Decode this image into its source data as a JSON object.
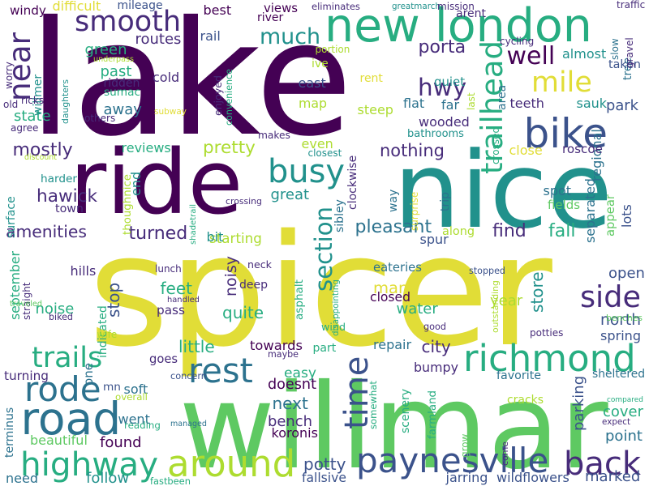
{
  "palette": {
    "purple": "#440154",
    "indigo": "#472c7a",
    "blue": "#3b528b",
    "steel": "#2c728e",
    "teal": "#21918c",
    "sea": "#27ad81",
    "green": "#5ec962",
    "lime": "#addc30",
    "yellow": "#e1dd37",
    "background": "#ffffff"
  },
  "words": [
    {
      "text": "lake",
      "color": "purple",
      "rotated": false
    },
    {
      "text": "spicer",
      "color": "yellow",
      "rotated": false
    },
    {
      "text": "willmar",
      "color": "green",
      "rotated": false
    },
    {
      "text": "nice",
      "color": "teal",
      "rotated": false
    },
    {
      "text": "ride",
      "color": "purple",
      "rotated": false
    },
    {
      "text": "new london",
      "color": "sea",
      "rotated": false
    },
    {
      "text": "richmond",
      "color": "sea",
      "rotated": false
    },
    {
      "text": "mile",
      "color": "yellow",
      "rotated": false
    },
    {
      "text": "bike",
      "color": "blue",
      "rotated": false
    },
    {
      "text": "paynesville",
      "color": "blue",
      "rotated": false
    },
    {
      "text": "road",
      "color": "steel",
      "rotated": false
    },
    {
      "text": "around",
      "color": "lime",
      "rotated": false
    },
    {
      "text": "busy",
      "color": "teal",
      "rotated": false
    },
    {
      "text": "trailhead",
      "color": "sea",
      "rotated": true
    },
    {
      "text": "time",
      "color": "blue",
      "rotated": true
    },
    {
      "text": "highway",
      "color": "sea",
      "rotated": false
    },
    {
      "text": "back",
      "color": "indigo",
      "rotated": false
    },
    {
      "text": "side",
      "color": "indigo",
      "rotated": false
    },
    {
      "text": "smooth",
      "color": "indigo",
      "rotated": false
    },
    {
      "text": "rest",
      "color": "steel",
      "rotated": false
    },
    {
      "text": "rode",
      "color": "steel",
      "rotated": false
    },
    {
      "text": "trails",
      "color": "sea",
      "rotated": false
    },
    {
      "text": "much",
      "color": "teal",
      "rotated": false
    },
    {
      "text": "near",
      "color": "indigo",
      "rotated": true
    },
    {
      "text": "many",
      "color": "yellow",
      "rotated": false
    },
    {
      "text": "section",
      "color": "teal",
      "rotated": true
    },
    {
      "text": "hwy",
      "color": "indigo",
      "rotated": false
    },
    {
      "text": "well",
      "color": "purple",
      "rotated": false
    },
    {
      "text": "porta",
      "color": "indigo",
      "rotated": false
    },
    {
      "text": "pretty",
      "color": "lime",
      "rotated": false
    },
    {
      "text": "mostly",
      "color": "indigo",
      "rotated": false
    },
    {
      "text": "hawick",
      "color": "indigo",
      "rotated": false
    },
    {
      "text": "amenities",
      "color": "indigo",
      "rotated": false
    },
    {
      "text": "turned",
      "color": "indigo",
      "rotated": false
    },
    {
      "text": "pleasant",
      "color": "steel",
      "rotated": false
    },
    {
      "text": "find",
      "color": "indigo",
      "rotated": false
    },
    {
      "text": "fall",
      "color": "sea",
      "rotated": false
    },
    {
      "text": "nothing",
      "color": "indigo",
      "rotated": false
    },
    {
      "text": "park",
      "color": "blue",
      "rotated": false
    },
    {
      "text": "north",
      "color": "blue",
      "rotated": false
    },
    {
      "text": "store",
      "color": "teal",
      "rotated": true
    },
    {
      "text": "spring",
      "color": "blue",
      "rotated": false
    },
    {
      "text": "open",
      "color": "blue",
      "rotated": false
    },
    {
      "text": "potty",
      "color": "blue",
      "rotated": false
    },
    {
      "text": "found",
      "color": "purple",
      "rotated": false
    },
    {
      "text": "follow",
      "color": "teal",
      "rotated": false
    },
    {
      "text": "marked",
      "color": "blue",
      "rotated": false
    },
    {
      "text": "next",
      "color": "steel",
      "rotated": false
    },
    {
      "text": "easy",
      "color": "sea",
      "rotated": false
    },
    {
      "text": "city",
      "color": "indigo",
      "rotated": false
    },
    {
      "text": "little",
      "color": "sea",
      "rotated": false
    },
    {
      "text": "stop",
      "color": "blue",
      "rotated": true
    },
    {
      "text": "feet",
      "color": "sea",
      "rotated": false
    },
    {
      "text": "noisy",
      "color": "indigo",
      "rotated": true
    },
    {
      "text": "quite",
      "color": "sea",
      "rotated": false
    },
    {
      "text": "water",
      "color": "sea",
      "rotated": false
    },
    {
      "text": "year",
      "color": "lime",
      "rotated": false
    },
    {
      "text": "eateries",
      "color": "steel",
      "rotated": false
    },
    {
      "text": "noise",
      "color": "sea",
      "rotated": false
    },
    {
      "text": "september",
      "color": "sea",
      "rotated": true
    },
    {
      "text": "towards",
      "color": "purple",
      "rotated": false
    },
    {
      "text": "bench",
      "color": "indigo",
      "rotated": false
    },
    {
      "text": "koronis",
      "color": "purple",
      "rotated": false
    },
    {
      "text": "doesnt",
      "color": "purple",
      "rotated": false
    },
    {
      "text": "somewhat",
      "color": "sea",
      "rotated": true
    },
    {
      "text": "scenery",
      "color": "sea",
      "rotated": true
    },
    {
      "text": "bumpy",
      "color": "indigo",
      "rotated": false
    },
    {
      "text": "repair",
      "color": "steel",
      "rotated": false
    },
    {
      "text": "parking",
      "color": "blue",
      "rotated": true
    },
    {
      "text": "cover",
      "color": "sea",
      "rotated": false
    },
    {
      "text": "point",
      "color": "steel",
      "rotated": false
    },
    {
      "text": "went",
      "color": "steel",
      "rotated": false
    },
    {
      "text": "soft",
      "color": "steel",
      "rotated": false
    },
    {
      "text": "mn",
      "color": "blue",
      "rotated": false
    },
    {
      "text": "goes",
      "color": "indigo",
      "rotated": false
    },
    {
      "text": "one",
      "color": "steel",
      "rotated": true
    },
    {
      "text": "turning",
      "color": "indigo",
      "rotated": false
    },
    {
      "text": "beautiful",
      "color": "green",
      "rotated": false
    },
    {
      "text": "need",
      "color": "steel",
      "rotated": false
    },
    {
      "text": "terminus",
      "color": "steel",
      "rotated": true
    },
    {
      "text": "fallsive",
      "color": "blue",
      "rotated": false
    },
    {
      "text": "jarring",
      "color": "blue",
      "rotated": false
    },
    {
      "text": "wildflowers",
      "color": "blue",
      "rotated": false
    },
    {
      "text": "farmland",
      "color": "sea",
      "rotated": true
    },
    {
      "text": "sheltered",
      "color": "steel",
      "rotated": false
    },
    {
      "text": "favorite",
      "color": "steel",
      "rotated": false
    },
    {
      "text": "cracks",
      "color": "lime",
      "rotated": false
    },
    {
      "text": "closed",
      "color": "purple",
      "rotated": false
    },
    {
      "text": "asphalt",
      "color": "sea",
      "rotated": true
    },
    {
      "text": "wind",
      "color": "sea",
      "rotated": false
    },
    {
      "text": "spur",
      "color": "blue",
      "rotated": false
    },
    {
      "text": "along",
      "color": "lime",
      "rotated": false
    },
    {
      "text": "lots",
      "color": "blue",
      "rotated": true
    },
    {
      "text": "appear",
      "color": "green",
      "rotated": true
    },
    {
      "text": "separated",
      "color": "steel",
      "rotated": true
    },
    {
      "text": "regional",
      "color": "steel",
      "rotated": true
    },
    {
      "text": "spot",
      "color": "steel",
      "rotated": false
    },
    {
      "text": "fields",
      "color": "green",
      "rotated": false
    },
    {
      "text": "trip",
      "color": "steel",
      "rotated": true
    },
    {
      "text": "way",
      "color": "steel",
      "rotated": true
    },
    {
      "text": "sibley",
      "color": "steel",
      "rotated": true
    },
    {
      "text": "great",
      "color": "teal",
      "rotated": false
    },
    {
      "text": "starting",
      "color": "lime",
      "rotated": false
    },
    {
      "text": "bit",
      "color": "teal",
      "rotated": false
    },
    {
      "text": "even",
      "color": "lime",
      "rotated": false
    },
    {
      "text": "close",
      "color": "yellow",
      "rotated": false
    },
    {
      "text": "roscoe",
      "color": "indigo",
      "rotated": false
    },
    {
      "text": "wooded",
      "color": "indigo",
      "rotated": false
    },
    {
      "text": "flat",
      "color": "steel",
      "rotated": false
    },
    {
      "text": "far",
      "color": "steel",
      "rotated": false
    },
    {
      "text": "steep",
      "color": "lime",
      "rotated": false
    },
    {
      "text": "teeth",
      "color": "indigo",
      "rotated": false
    },
    {
      "text": "sauk",
      "color": "teal",
      "rotated": false
    },
    {
      "text": "east",
      "color": "blue",
      "rotated": false
    },
    {
      "text": "map",
      "color": "lime",
      "rotated": false
    },
    {
      "text": "quiet",
      "color": "teal",
      "rotated": false
    },
    {
      "text": "almost",
      "color": "teal",
      "rotated": false
    },
    {
      "text": "tree",
      "color": "steel",
      "rotated": true
    },
    {
      "text": "taken",
      "color": "blue",
      "rotated": false
    },
    {
      "text": "area",
      "color": "steel",
      "rotated": true
    },
    {
      "text": "rent",
      "color": "yellow",
      "rotated": false
    },
    {
      "text": "ive",
      "color": "lime",
      "rotated": false
    },
    {
      "text": "rail",
      "color": "blue",
      "rotated": false
    },
    {
      "text": "best",
      "color": "purple",
      "rotated": false
    },
    {
      "text": "views",
      "color": "purple",
      "rotated": false
    },
    {
      "text": "river",
      "color": "purple",
      "rotated": false
    },
    {
      "text": "enjoyed",
      "color": "indigo",
      "rotated": true
    },
    {
      "text": "convenience",
      "color": "sea",
      "rotated": true
    },
    {
      "text": "routes",
      "color": "indigo",
      "rotated": false
    },
    {
      "text": "cold",
      "color": "indigo",
      "rotated": false
    },
    {
      "text": "green",
      "color": "sea",
      "rotated": false
    },
    {
      "text": "past",
      "color": "sea",
      "rotated": false
    },
    {
      "text": "sumac",
      "color": "sea",
      "rotated": false
    },
    {
      "text": "ridden",
      "color": "indigo",
      "rotated": false
    },
    {
      "text": "away",
      "color": "steel",
      "rotated": false
    },
    {
      "text": "state",
      "color": "sea",
      "rotated": false
    },
    {
      "text": "daughters",
      "color": "teal",
      "rotated": true
    },
    {
      "text": "willmer",
      "color": "teal",
      "rotated": true
    },
    {
      "text": "surface",
      "color": "teal",
      "rotated": true
    },
    {
      "text": "town",
      "color": "indigo",
      "rotated": false
    },
    {
      "text": "end",
      "color": "teal",
      "rotated": true
    },
    {
      "text": "reviews",
      "color": "sea",
      "rotated": false
    },
    {
      "text": "makes",
      "color": "indigo",
      "rotated": false
    },
    {
      "text": "thoughnice",
      "color": "lime",
      "rotated": true
    },
    {
      "text": "shadetrail",
      "color": "sea",
      "rotated": true
    },
    {
      "text": "crossing",
      "color": "indigo",
      "rotated": false
    },
    {
      "text": "hills",
      "color": "indigo",
      "rotated": false
    },
    {
      "text": "straight",
      "color": "indigo",
      "rotated": true
    },
    {
      "text": "neck",
      "color": "indigo",
      "rotated": false
    },
    {
      "text": "deep",
      "color": "indigo",
      "rotated": false
    },
    {
      "text": "lunch",
      "color": "indigo",
      "rotated": false
    },
    {
      "text": "handled",
      "color": "indigo",
      "rotated": false
    },
    {
      "text": "pass",
      "color": "indigo",
      "rotated": false
    },
    {
      "text": "indicated",
      "color": "sea",
      "rotated": true
    },
    {
      "text": "maybe",
      "color": "indigo",
      "rotated": false
    },
    {
      "text": "part",
      "color": "sea",
      "rotated": false
    },
    {
      "text": "disappointing",
      "color": "sea",
      "rotated": true
    },
    {
      "text": "stopped",
      "color": "blue",
      "rotated": false
    },
    {
      "text": "outstanding",
      "color": "lime",
      "rotated": true
    },
    {
      "text": "good",
      "color": "indigo",
      "rotated": false
    },
    {
      "text": "potties",
      "color": "indigo",
      "rotated": false
    },
    {
      "text": "benches",
      "color": "green",
      "rotated": false
    },
    {
      "text": "concern",
      "color": "blue",
      "rotated": false
    },
    {
      "text": "managed",
      "color": "steel",
      "rotated": false
    },
    {
      "text": "reading",
      "color": "sea",
      "rotated": false
    },
    {
      "text": "overall",
      "color": "lime",
      "rotated": false
    },
    {
      "text": "compared",
      "color": "sea",
      "rotated": false
    },
    {
      "text": "expect",
      "color": "indigo",
      "rotated": false
    },
    {
      "text": "grow",
      "color": "green",
      "rotated": true
    },
    {
      "text": "come",
      "color": "indigo",
      "rotated": true
    },
    {
      "text": "fastbeen",
      "color": "sea",
      "rotated": false
    },
    {
      "text": "wife",
      "color": "lime",
      "rotated": false
    },
    {
      "text": "biked",
      "color": "indigo",
      "rotated": false
    },
    {
      "text": "traveled",
      "color": "green",
      "rotated": false
    },
    {
      "text": "harder",
      "color": "teal",
      "rotated": false
    },
    {
      "text": "clockwise",
      "color": "indigo",
      "rotated": true
    },
    {
      "text": "surprise",
      "color": "yellow",
      "rotated": true
    },
    {
      "text": "crossed",
      "color": "sea",
      "rotated": true
    },
    {
      "text": "bathrooms",
      "color": "teal",
      "rotated": false
    },
    {
      "text": "closest",
      "color": "teal",
      "rotated": false
    },
    {
      "text": "discount",
      "color": "lime",
      "rotated": false
    },
    {
      "text": "agree",
      "color": "indigo",
      "rotated": false
    },
    {
      "text": "others",
      "color": "indigo",
      "rotated": false
    },
    {
      "text": "subway",
      "color": "yellow",
      "rotated": false
    },
    {
      "text": "underpass",
      "color": "lime",
      "rotated": false
    },
    {
      "text": "ricks",
      "color": "indigo",
      "rotated": false
    },
    {
      "text": "old",
      "color": "indigo",
      "rotated": false
    },
    {
      "text": "worry",
      "color": "indigo",
      "rotated": true
    },
    {
      "text": "windy",
      "color": "purple",
      "rotated": false
    },
    {
      "text": "difficult",
      "color": "yellow",
      "rotated": false
    },
    {
      "text": "mileage",
      "color": "blue",
      "rotated": false
    },
    {
      "text": "eliminates",
      "color": "indigo",
      "rotated": false
    },
    {
      "text": "greatmarch",
      "color": "teal",
      "rotated": false
    },
    {
      "text": "mission",
      "color": "indigo",
      "rotated": false
    },
    {
      "text": "traffic",
      "color": "indigo",
      "rotated": false
    },
    {
      "text": "arent",
      "color": "indigo",
      "rotated": false
    },
    {
      "text": "portion",
      "color": "lime",
      "rotated": false
    },
    {
      "text": "cycling",
      "color": "indigo",
      "rotated": false
    },
    {
      "text": "slow",
      "color": "steel",
      "rotated": true
    },
    {
      "text": "gravel",
      "color": "indigo",
      "rotated": true
    },
    {
      "text": "last",
      "color": "lime",
      "rotated": true
    }
  ]
}
